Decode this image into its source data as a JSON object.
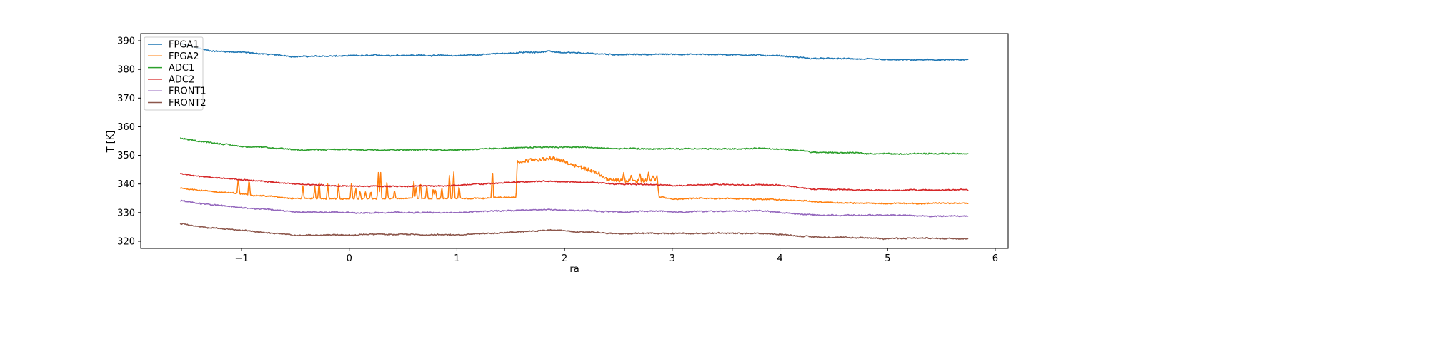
{
  "chart_data": {
    "type": "line",
    "title": "",
    "xlabel": "ra",
    "ylabel": "T [K]",
    "xlim": [
      -1.936,
      6.12
    ],
    "ylim": [
      317.5,
      392.5
    ],
    "xticks": [
      -1,
      0,
      1,
      2,
      3,
      4,
      5,
      6
    ],
    "xtick_labels": [
      "−1",
      "0",
      "1",
      "2",
      "3",
      "4",
      "5",
      "6"
    ],
    "yticks": [
      320,
      330,
      340,
      350,
      360,
      370,
      380,
      390
    ],
    "ytick_labels": [
      "320",
      "330",
      "340",
      "350",
      "360",
      "370",
      "380",
      "390"
    ],
    "grid": false,
    "legend_position": "upper-left",
    "series": [
      {
        "name": "FPGA1",
        "color": "#1f77b4",
        "points": [
          [
            -1.57,
            389
          ],
          [
            -1.3,
            386.5
          ],
          [
            -1,
            386
          ],
          [
            -0.5,
            384.5
          ],
          [
            0,
            384.7
          ],
          [
            0.5,
            385
          ],
          [
            1,
            384.8
          ],
          [
            1.5,
            385.7
          ],
          [
            1.85,
            386.3
          ],
          [
            2,
            385.8
          ],
          [
            2.5,
            385.2
          ],
          [
            3,
            385.3
          ],
          [
            3.5,
            385.2
          ],
          [
            4,
            384.8
          ],
          [
            4.3,
            383.8
          ],
          [
            4.7,
            383.7
          ],
          [
            5,
            383.3
          ],
          [
            5.5,
            383.3
          ],
          [
            5.75,
            383.3
          ]
        ]
      },
      {
        "name": "FPGA2",
        "color": "#ff7f0e",
        "points": [
          [
            -1.57,
            338.6
          ],
          [
            -1.3,
            337.5
          ],
          [
            -1,
            336.5
          ],
          [
            -0.5,
            335
          ],
          [
            0,
            334.8
          ],
          [
            1,
            335
          ],
          [
            1.55,
            335.3
          ],
          [
            1.56,
            347.5
          ],
          [
            1.7,
            348.5
          ],
          [
            1.9,
            349
          ],
          [
            2.1,
            346.5
          ],
          [
            2.3,
            344
          ],
          [
            2.4,
            341.5
          ],
          [
            2.6,
            341
          ],
          [
            2.85,
            341.5
          ],
          [
            2.88,
            335.5
          ],
          [
            3,
            334.8
          ],
          [
            3.5,
            335
          ],
          [
            4,
            334.5
          ],
          [
            4.5,
            333.5
          ],
          [
            5,
            333.2
          ],
          [
            5.75,
            333.2
          ]
        ],
        "spikes": [
          [
            -1.03,
            342.3
          ],
          [
            -0.93,
            342.3
          ],
          [
            -0.43,
            339.5
          ],
          [
            -0.32,
            339.3
          ],
          [
            -0.28,
            341
          ],
          [
            -0.2,
            340
          ],
          [
            -0.1,
            340.3
          ],
          [
            0.02,
            340.5
          ],
          [
            0.06,
            338.5
          ],
          [
            0.1,
            338
          ],
          [
            0.15,
            337
          ],
          [
            0.2,
            337.5
          ],
          [
            0.27,
            344.5
          ],
          [
            0.29,
            345
          ],
          [
            0.35,
            341
          ],
          [
            0.42,
            338
          ],
          [
            0.6,
            341
          ],
          [
            0.62,
            339
          ],
          [
            0.66,
            341
          ],
          [
            0.72,
            339.5
          ],
          [
            0.78,
            339
          ],
          [
            0.8,
            338.5
          ],
          [
            0.86,
            339
          ],
          [
            0.93,
            343.5
          ],
          [
            0.97,
            345
          ],
          [
            1.02,
            339.5
          ],
          [
            1.33,
            345.5
          ],
          [
            2.55,
            344
          ],
          [
            2.62,
            343.5
          ],
          [
            2.7,
            344
          ],
          [
            2.78,
            344.2
          ],
          [
            2.82,
            343
          ],
          [
            2.86,
            343
          ]
        ]
      },
      {
        "name": "ADC1",
        "color": "#2ca02c",
        "points": [
          [
            -1.57,
            356
          ],
          [
            -1.4,
            355
          ],
          [
            -1,
            353.2
          ],
          [
            -0.5,
            352
          ],
          [
            0,
            352
          ],
          [
            1,
            352
          ],
          [
            1.5,
            352.6
          ],
          [
            1.8,
            353
          ],
          [
            2.2,
            352.8
          ],
          [
            2.5,
            352.3
          ],
          [
            3,
            352.2
          ],
          [
            3.5,
            352.3
          ],
          [
            3.8,
            352.5
          ],
          [
            4.2,
            351.6
          ],
          [
            4.3,
            351.1
          ],
          [
            5,
            350.6
          ],
          [
            5.75,
            350.6
          ]
        ]
      },
      {
        "name": "ADC2",
        "color": "#d62728",
        "points": [
          [
            -1.57,
            343.6
          ],
          [
            -1.3,
            342.3
          ],
          [
            -1,
            341.5
          ],
          [
            -0.5,
            340
          ],
          [
            0,
            339.2
          ],
          [
            0.5,
            339.2
          ],
          [
            1,
            339.5
          ],
          [
            1.5,
            340.5
          ],
          [
            1.8,
            341
          ],
          [
            2.2,
            340.7
          ],
          [
            2.5,
            340
          ],
          [
            3,
            339.5
          ],
          [
            3.5,
            339.8
          ],
          [
            4,
            339.6
          ],
          [
            4.3,
            338.2
          ],
          [
            5,
            337.8
          ],
          [
            5.75,
            338
          ]
        ]
      },
      {
        "name": "FRONT1",
        "color": "#9467bd",
        "points": [
          [
            -1.57,
            334.2
          ],
          [
            -1.3,
            332.8
          ],
          [
            -1,
            331.8
          ],
          [
            -0.5,
            330.3
          ],
          [
            0,
            330
          ],
          [
            1,
            330
          ],
          [
            1.5,
            330.8
          ],
          [
            1.85,
            331
          ],
          [
            2.2,
            330.7
          ],
          [
            2.5,
            330.2
          ],
          [
            2.9,
            330.6
          ],
          [
            3,
            330.3
          ],
          [
            3.5,
            330.5
          ],
          [
            3.8,
            330.6
          ],
          [
            4.3,
            329.2
          ],
          [
            5,
            329
          ],
          [
            5.5,
            328.8
          ],
          [
            5.75,
            328.8
          ]
        ]
      },
      {
        "name": "FRONT2",
        "color": "#8c564b",
        "points": [
          [
            -1.57,
            326.2
          ],
          [
            -1.3,
            324.7
          ],
          [
            -1,
            323.8
          ],
          [
            -0.5,
            322.2
          ],
          [
            0,
            322.1
          ],
          [
            0.3,
            322.5
          ],
          [
            1,
            322.2
          ],
          [
            1.3,
            322.8
          ],
          [
            1.6,
            323.2
          ],
          [
            1.85,
            323.9
          ],
          [
            2.2,
            323.3
          ],
          [
            2.5,
            322.7
          ],
          [
            3,
            322.8
          ],
          [
            3.5,
            322.8
          ],
          [
            3.8,
            322.8
          ],
          [
            4.2,
            321.8
          ],
          [
            4.5,
            321.3
          ],
          [
            5,
            321
          ],
          [
            5.75,
            321
          ]
        ]
      }
    ]
  }
}
